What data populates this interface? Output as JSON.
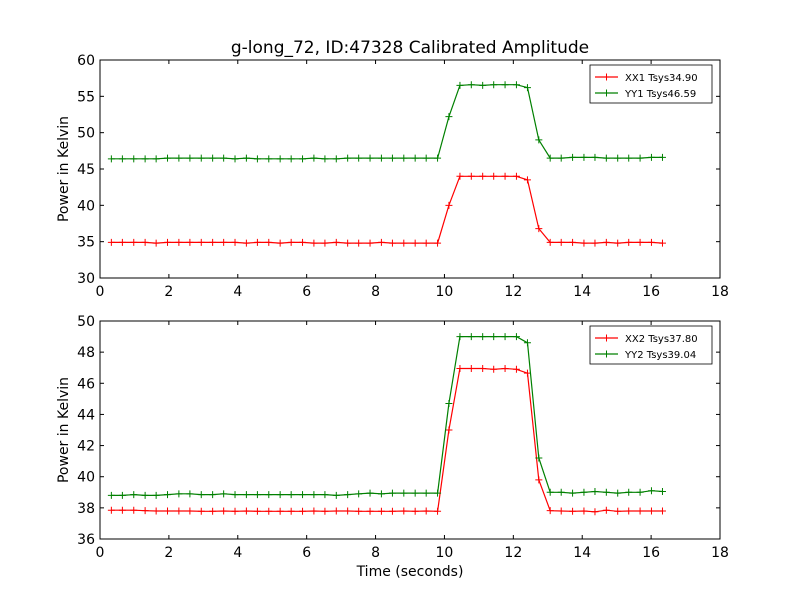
{
  "figure": {
    "title": "g-long_72, ID:47328 Calibrated Amplitude"
  },
  "chart_data": [
    {
      "type": "line",
      "ylabel": "Power in Kelvin",
      "xlabel": "",
      "xlim": [
        0,
        18
      ],
      "ylim": [
        30,
        60
      ],
      "xticks": [
        0,
        2,
        4,
        6,
        8,
        10,
        12,
        14,
        16,
        18
      ],
      "yticks": [
        30,
        35,
        40,
        45,
        50,
        55,
        60
      ],
      "grid": false,
      "legend_position": "top-right",
      "x": [
        0.33,
        0.65,
        0.98,
        1.31,
        1.63,
        1.96,
        2.29,
        2.61,
        2.94,
        3.27,
        3.59,
        3.92,
        4.25,
        4.57,
        4.9,
        5.23,
        5.55,
        5.88,
        6.21,
        6.53,
        6.86,
        7.19,
        7.51,
        7.84,
        8.17,
        8.49,
        8.82,
        9.15,
        9.47,
        9.8,
        10.13,
        10.45,
        10.78,
        11.11,
        11.43,
        11.76,
        12.09,
        12.41,
        12.74,
        13.07,
        13.39,
        13.72,
        14.05,
        14.37,
        14.7,
        15.03,
        15.35,
        15.68,
        16.01,
        16.33
      ],
      "series": [
        {
          "name": "XX1 Tsys34.90",
          "color": "#ff0000",
          "values": [
            34.9,
            34.9,
            34.9,
            34.9,
            34.8,
            34.9,
            34.9,
            34.9,
            34.9,
            34.9,
            34.9,
            34.9,
            34.8,
            34.9,
            34.9,
            34.8,
            34.9,
            34.9,
            34.8,
            34.8,
            34.9,
            34.8,
            34.8,
            34.8,
            34.9,
            34.8,
            34.8,
            34.8,
            34.8,
            34.8,
            40.0,
            44.0,
            44.0,
            44.0,
            44.0,
            44.0,
            44.0,
            43.5,
            36.8,
            34.9,
            34.9,
            34.9,
            34.8,
            34.8,
            34.9,
            34.8,
            34.9,
            34.9,
            34.9,
            34.8
          ]
        },
        {
          "name": "YY1 Tsys46.59",
          "color": "#008000",
          "values": [
            46.4,
            46.4,
            46.4,
            46.4,
            46.4,
            46.5,
            46.5,
            46.5,
            46.5,
            46.5,
            46.5,
            46.4,
            46.5,
            46.4,
            46.4,
            46.4,
            46.4,
            46.4,
            46.5,
            46.4,
            46.4,
            46.5,
            46.5,
            46.5,
            46.5,
            46.5,
            46.5,
            46.5,
            46.5,
            46.5,
            52.2,
            56.5,
            56.6,
            56.5,
            56.6,
            56.6,
            56.6,
            56.2,
            49.0,
            46.5,
            46.5,
            46.6,
            46.6,
            46.6,
            46.5,
            46.5,
            46.5,
            46.5,
            46.6,
            46.6
          ]
        }
      ]
    },
    {
      "type": "line",
      "ylabel": "Power in Kelvin",
      "xlabel": "Time (seconds)",
      "xlim": [
        0,
        18
      ],
      "ylim": [
        36,
        50
      ],
      "xticks": [
        0,
        2,
        4,
        6,
        8,
        10,
        12,
        14,
        16,
        18
      ],
      "yticks": [
        36,
        38,
        40,
        42,
        44,
        46,
        48,
        50
      ],
      "grid": false,
      "legend_position": "top-right",
      "x": [
        0.33,
        0.65,
        0.98,
        1.31,
        1.63,
        1.96,
        2.29,
        2.61,
        2.94,
        3.27,
        3.59,
        3.92,
        4.25,
        4.57,
        4.9,
        5.23,
        5.55,
        5.88,
        6.21,
        6.53,
        6.86,
        7.19,
        7.51,
        7.84,
        8.17,
        8.49,
        8.82,
        9.15,
        9.47,
        9.8,
        10.13,
        10.45,
        10.78,
        11.11,
        11.43,
        11.76,
        12.09,
        12.41,
        12.74,
        13.07,
        13.39,
        13.72,
        14.05,
        14.37,
        14.7,
        15.03,
        15.35,
        15.68,
        16.01,
        16.33
      ],
      "series": [
        {
          "name": "XX2 Tsys37.80",
          "color": "#ff0000",
          "values": [
            37.85,
            37.85,
            37.85,
            37.82,
            37.8,
            37.8,
            37.8,
            37.8,
            37.78,
            37.78,
            37.8,
            37.78,
            37.8,
            37.78,
            37.78,
            37.78,
            37.78,
            37.78,
            37.8,
            37.78,
            37.8,
            37.8,
            37.78,
            37.78,
            37.78,
            37.78,
            37.8,
            37.78,
            37.8,
            37.78,
            43.0,
            46.95,
            46.95,
            46.95,
            46.9,
            46.95,
            46.9,
            46.65,
            39.8,
            37.82,
            37.8,
            37.78,
            37.8,
            37.75,
            37.85,
            37.78,
            37.8,
            37.8,
            37.8,
            37.8
          ]
        },
        {
          "name": "YY2 Tsys39.04",
          "color": "#008000",
          "values": [
            38.8,
            38.8,
            38.85,
            38.8,
            38.8,
            38.85,
            38.9,
            38.9,
            38.85,
            38.85,
            38.9,
            38.85,
            38.85,
            38.85,
            38.85,
            38.85,
            38.85,
            38.85,
            38.85,
            38.85,
            38.8,
            38.85,
            38.9,
            38.95,
            38.9,
            38.95,
            38.95,
            38.95,
            38.95,
            38.95,
            44.7,
            49.0,
            49.0,
            49.0,
            49.0,
            49.0,
            49.0,
            48.6,
            41.2,
            39.0,
            39.0,
            38.95,
            39.0,
            39.05,
            39.0,
            38.95,
            39.0,
            39.0,
            39.1,
            39.05
          ]
        }
      ]
    }
  ]
}
